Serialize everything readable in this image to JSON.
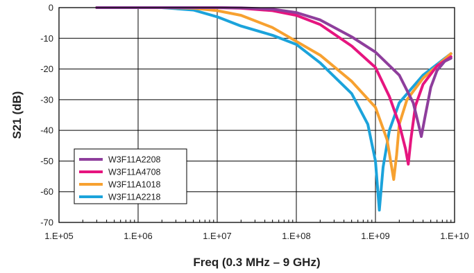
{
  "chart_data": {
    "type": "line",
    "title": "",
    "xlabel": "Freq (0.3 MHz – 9 GHz)",
    "ylabel": "S21 (dB)",
    "x_scale": "log",
    "xlim": [
      100000,
      10000000000
    ],
    "ylim": [
      -70,
      0
    ],
    "x_tick_labels": [
      "1.E+05",
      "1.E+06",
      "1.E+07",
      "1.E+08",
      "1.E+09",
      "1.E+10"
    ],
    "x_ticks": [
      100000,
      1000000,
      10000000,
      100000000,
      1000000000,
      10000000000
    ],
    "y_ticks": [
      0,
      -10,
      -20,
      -30,
      -40,
      -50,
      -60,
      -70
    ],
    "y_tick_labels": [
      "0",
      "-10",
      "-20",
      "-30",
      "-40",
      "-50",
      "-60",
      "-70"
    ],
    "grid": true,
    "legend": "bottom-left",
    "series": [
      {
        "name": "W3F11A2208",
        "color": "#8e3e9c",
        "points": [
          [
            300000,
            0
          ],
          [
            10000000,
            0
          ],
          [
            20000000,
            -0.1
          ],
          [
            50000000,
            -0.5
          ],
          [
            100000000,
            -1.6
          ],
          [
            200000000,
            -4
          ],
          [
            500000000,
            -9.5
          ],
          [
            1000000000,
            -14.5
          ],
          [
            2000000000,
            -22
          ],
          [
            3000000000,
            -31
          ],
          [
            3500000000,
            -38
          ],
          [
            3800000000,
            -42
          ],
          [
            4200000000,
            -36
          ],
          [
            5000000000,
            -26
          ],
          [
            6000000000,
            -20.5
          ],
          [
            7500000000,
            -17.5
          ],
          [
            9000000000,
            -16.5
          ]
        ]
      },
      {
        "name": "W3F11A4708",
        "color": "#e6157f",
        "points": [
          [
            300000,
            0
          ],
          [
            10000000,
            0
          ],
          [
            20000000,
            -0.2
          ],
          [
            50000000,
            -1
          ],
          [
            100000000,
            -2.5
          ],
          [
            200000000,
            -5.5
          ],
          [
            500000000,
            -12.5
          ],
          [
            1000000000,
            -19.5
          ],
          [
            1500000000,
            -29
          ],
          [
            2000000000,
            -38
          ],
          [
            2400000000,
            -46
          ],
          [
            2600000000,
            -51
          ],
          [
            2800000000,
            -43
          ],
          [
            3200000000,
            -32
          ],
          [
            4000000000,
            -25
          ],
          [
            6000000000,
            -19
          ],
          [
            9000000000,
            -16
          ]
        ]
      },
      {
        "name": "W3F11A1018",
        "color": "#f7a130",
        "points": [
          [
            300000,
            0
          ],
          [
            2000000,
            0
          ],
          [
            5000000,
            -0.2
          ],
          [
            10000000,
            -1
          ],
          [
            20000000,
            -2.5
          ],
          [
            50000000,
            -6.5
          ],
          [
            100000000,
            -11
          ],
          [
            200000000,
            -15.5
          ],
          [
            500000000,
            -24
          ],
          [
            1000000000,
            -32.5
          ],
          [
            1400000000,
            -43
          ],
          [
            1700000000,
            -56
          ],
          [
            1850000000,
            -48
          ],
          [
            2000000000,
            -38
          ],
          [
            2500000000,
            -30
          ],
          [
            4000000000,
            -23
          ],
          [
            9000000000,
            -15
          ]
        ]
      },
      {
        "name": "W3F11A2218",
        "color": "#1ba3db",
        "points": [
          [
            300000,
            0
          ],
          [
            2000000,
            0
          ],
          [
            5000000,
            -0.8
          ],
          [
            10000000,
            -3
          ],
          [
            20000000,
            -6
          ],
          [
            50000000,
            -9
          ],
          [
            100000000,
            -12
          ],
          [
            200000000,
            -18
          ],
          [
            500000000,
            -28
          ],
          [
            800000000,
            -38
          ],
          [
            1000000000,
            -50
          ],
          [
            1120000000,
            -66
          ],
          [
            1250000000,
            -52
          ],
          [
            1500000000,
            -40
          ],
          [
            2000000000,
            -31
          ],
          [
            4000000000,
            -22
          ],
          [
            9000000000,
            -15
          ]
        ]
      }
    ]
  }
}
